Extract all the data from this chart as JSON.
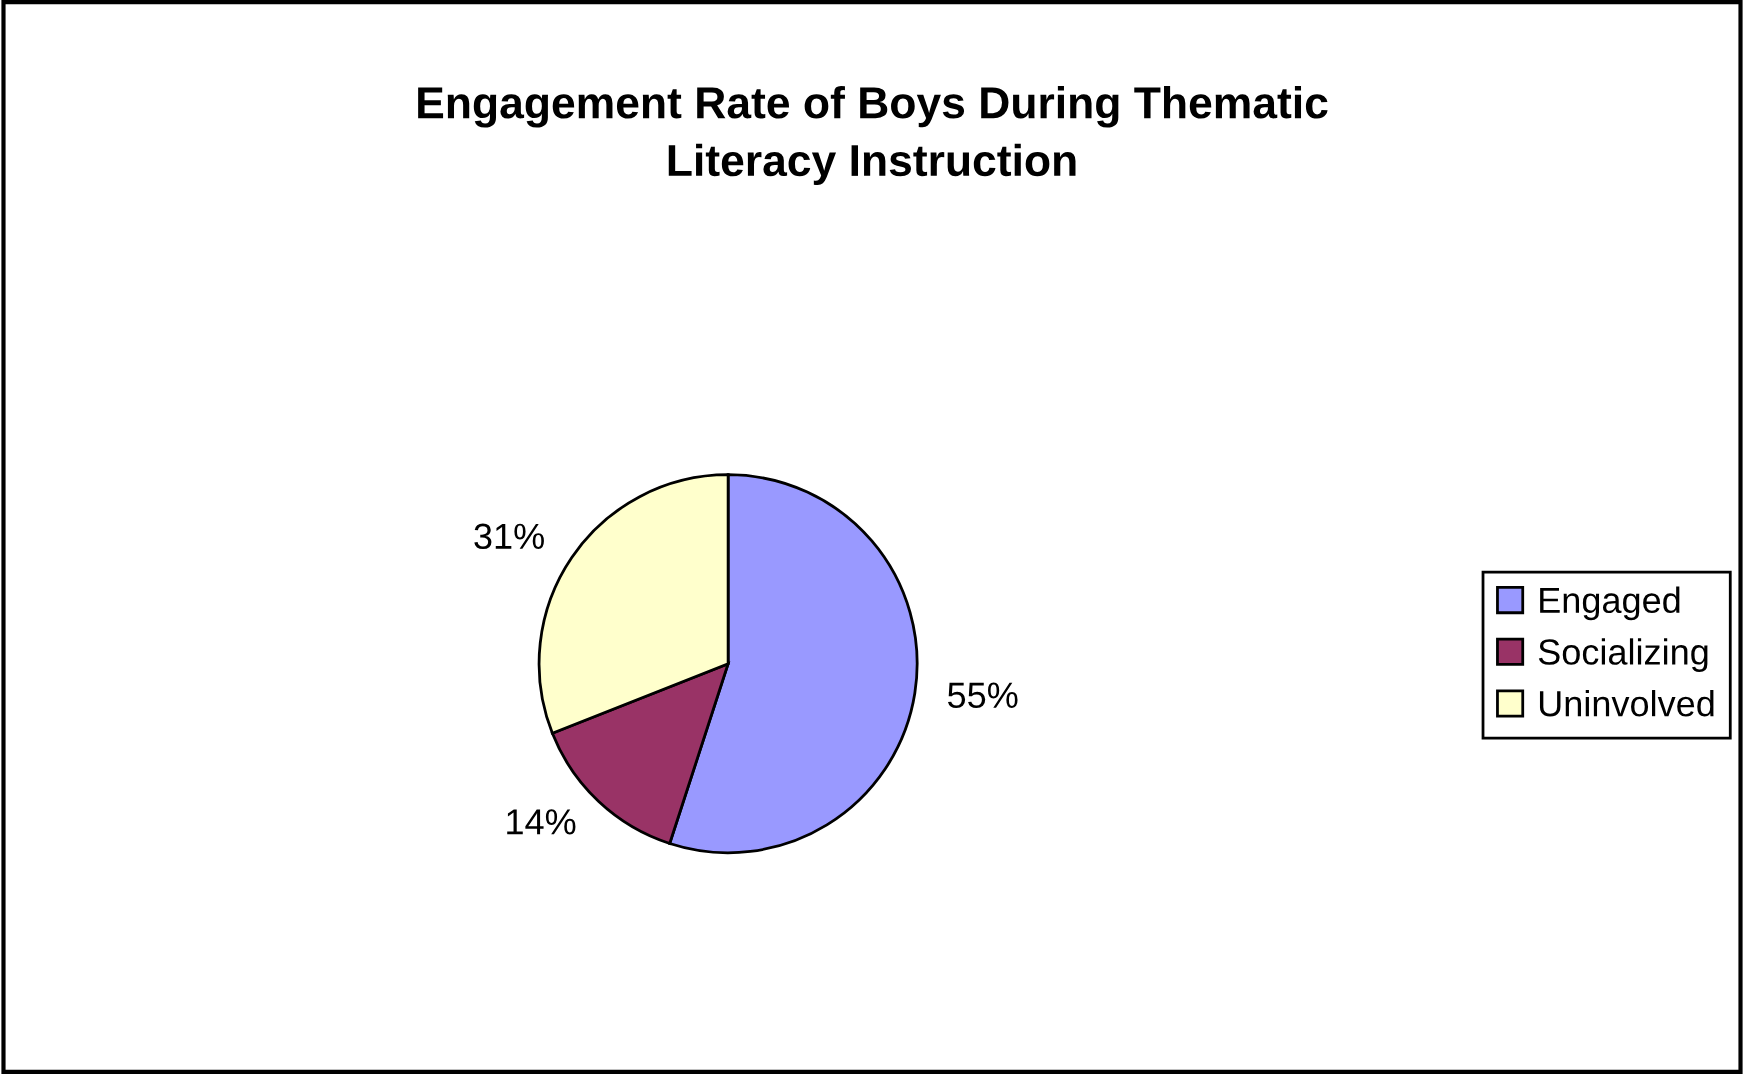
{
  "chart_data": {
    "type": "pie",
    "title": "Engagement Rate of Boys During Thematic\nLiteracy Instruction",
    "categories": [
      "Engaged",
      "Socializing",
      "Uninvolved"
    ],
    "values": [
      55,
      14,
      31
    ],
    "value_labels": [
      "55%",
      "14%",
      "31%"
    ],
    "colors": [
      "#9999ff",
      "#993366",
      "#ffffcc"
    ],
    "legend": "right"
  }
}
